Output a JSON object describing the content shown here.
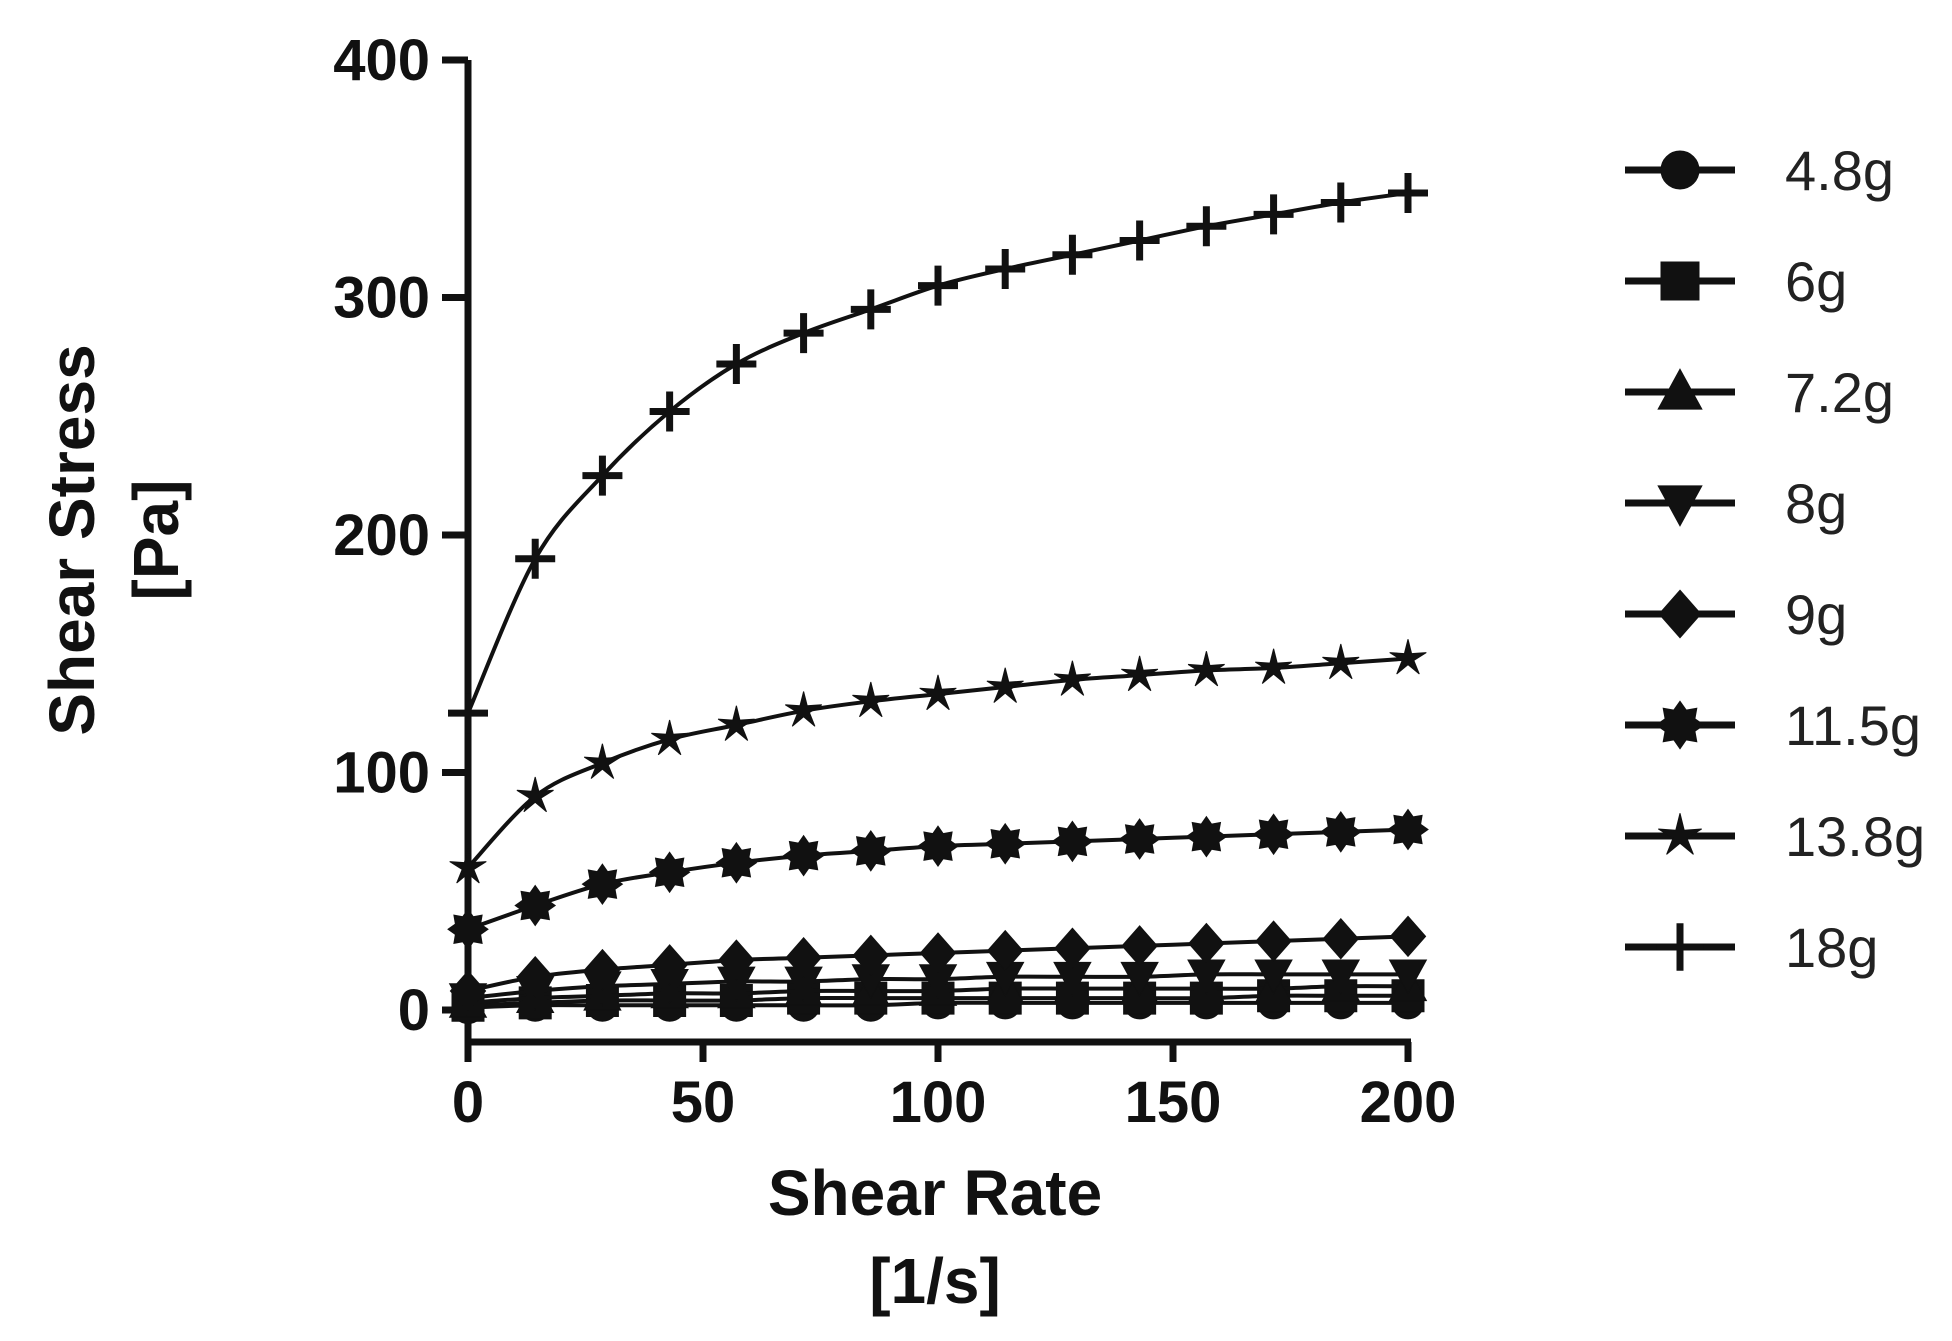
{
  "chart_data": {
    "type": "scatter",
    "title": "",
    "xlabel": [
      "Shear Rate",
      "[1/s]"
    ],
    "ylabel": [
      "Shear Stress",
      "[Pa]"
    ],
    "xlim": [
      0,
      200
    ],
    "ylim": [
      0,
      400
    ],
    "xticks": [
      "0",
      "50",
      "100",
      "150",
      "200"
    ],
    "yticks": [
      "0",
      "100",
      "200",
      "300",
      "400"
    ],
    "grid": false,
    "legend_position": "right",
    "x": [
      0,
      14.3,
      28.6,
      42.9,
      57.1,
      71.4,
      85.7,
      100,
      114.3,
      128.6,
      142.9,
      157.1,
      171.4,
      185.7,
      200
    ],
    "series": [
      {
        "name": "4.8g",
        "marker": "circle",
        "values": [
          1,
          2,
          2,
          2,
          2,
          2,
          2,
          3,
          3,
          3,
          3,
          3,
          3,
          3,
          3
        ]
      },
      {
        "name": "6g",
        "marker": "square",
        "values": [
          2,
          3,
          4,
          4,
          4,
          5,
          5,
          5,
          5,
          5,
          5,
          5,
          6,
          6,
          6
        ]
      },
      {
        "name": "7.2g",
        "marker": "triangle-up",
        "values": [
          3,
          5,
          6,
          7,
          7,
          8,
          8,
          8,
          9,
          9,
          9,
          9,
          9,
          10,
          10
        ]
      },
      {
        "name": "8g",
        "marker": "triangle-down",
        "values": [
          5,
          8,
          10,
          11,
          12,
          12,
          13,
          13,
          14,
          14,
          14,
          15,
          15,
          15,
          15
        ]
      },
      {
        "name": "9g",
        "marker": "diamond",
        "values": [
          8,
          14,
          17,
          19,
          21,
          22,
          23,
          24,
          25,
          26,
          27,
          28,
          29,
          30,
          31
        ]
      },
      {
        "name": "11.5g",
        "marker": "star-burst",
        "values": [
          34,
          44,
          53,
          58,
          62,
          65,
          67,
          69,
          70,
          71,
          72,
          73,
          74,
          75,
          76
        ]
      },
      {
        "name": "13.8g",
        "marker": "star",
        "values": [
          60,
          90,
          104,
          114,
          120,
          126,
          130,
          133,
          136,
          139,
          141,
          143,
          144,
          146,
          148
        ]
      },
      {
        "name": "18g",
        "marker": "plus",
        "values": [
          125,
          190,
          225,
          252,
          272,
          285,
          295,
          305,
          312,
          318,
          324,
          330,
          335,
          340,
          344
        ]
      }
    ]
  }
}
